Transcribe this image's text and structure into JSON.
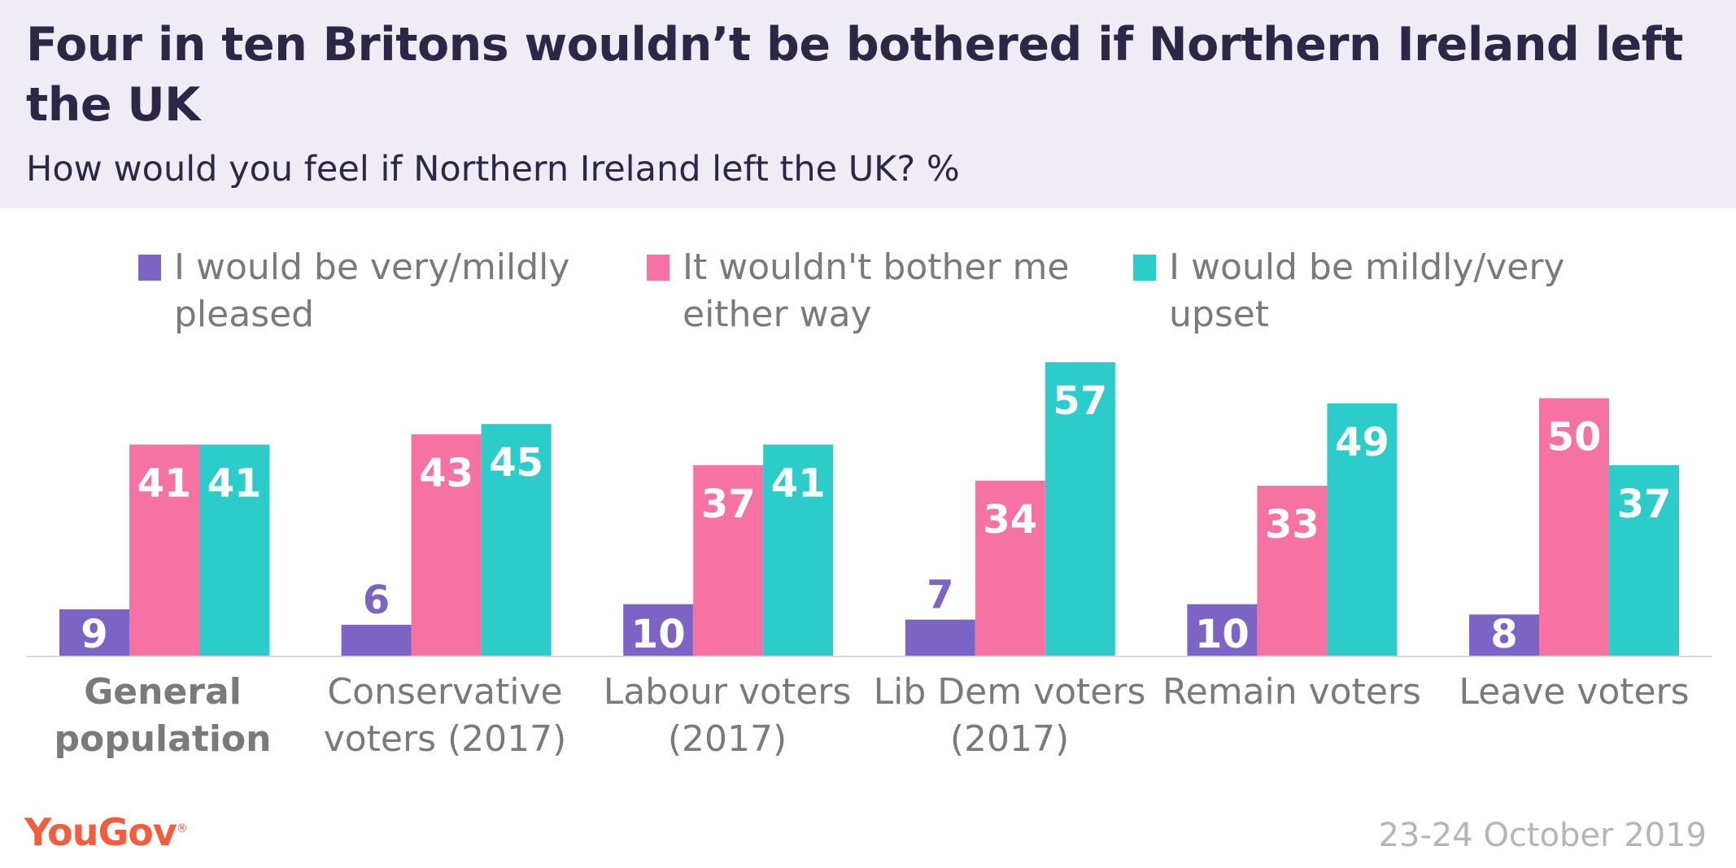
{
  "header": {
    "title": "Four in ten Britons wouldn’t be bothered if Northern Ireland left the UK",
    "subtitle": "How would you feel if Northern Ireland left the UK? %"
  },
  "legend": [
    {
      "label": "I would be very/mildly pleased",
      "color": "#7b64c4"
    },
    {
      "label": "It wouldn't bother me either way",
      "color": "#f572a3"
    },
    {
      "label": "I would be mildly/very upset",
      "color": "#2ccccb"
    }
  ],
  "footer": {
    "logo": "YouGov",
    "date": "23-24 October 2019"
  },
  "chart_data": {
    "type": "bar",
    "title": "Four in ten Britons wouldn’t be bothered if Northern Ireland left the UK",
    "subtitle": "How would you feel if Northern Ireland left the UK? %",
    "categories": [
      "General population",
      "Conservative voters (2017)",
      "Labour voters (2017)",
      "Lib Dem voters (2017)",
      "Remain voters",
      "Leave voters"
    ],
    "series": [
      {
        "name": "I would be very/mildly pleased",
        "color": "#7b64c4",
        "values": [
          9,
          6,
          10,
          7,
          10,
          8
        ]
      },
      {
        "name": "It wouldn't bother me either way",
        "color": "#f572a3",
        "values": [
          41,
          43,
          37,
          34,
          33,
          50
        ]
      },
      {
        "name": "I would be mildly/very upset",
        "color": "#2ccccb",
        "values": [
          41,
          45,
          41,
          57,
          49,
          37
        ]
      }
    ],
    "ylim": [
      0,
      57
    ],
    "grid": false,
    "legend_position": "top"
  }
}
